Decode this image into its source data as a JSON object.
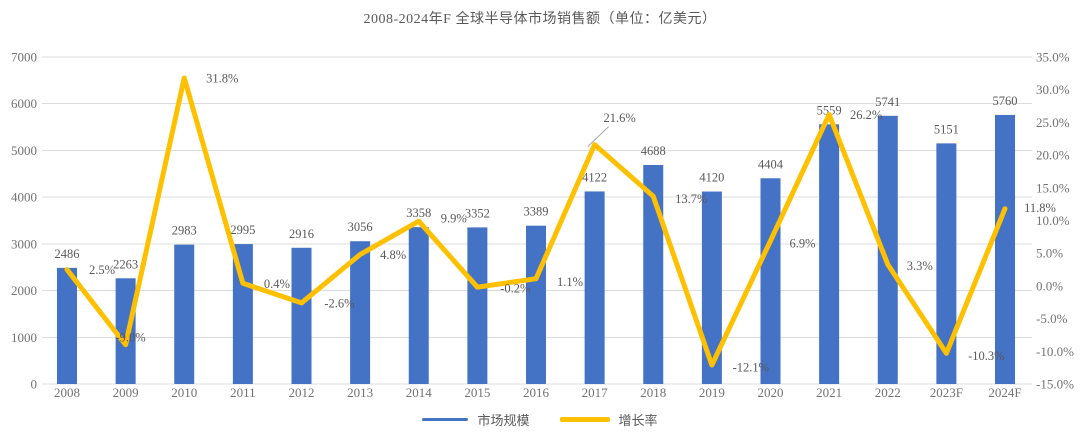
{
  "chart_data": {
    "type": "combo-bar-line",
    "title": "2008-2024年F 全球半导体市场销售额（单位：亿美元）",
    "categories": [
      "2008",
      "2009",
      "2010",
      "2011",
      "2012",
      "2013",
      "2014",
      "2015",
      "2016",
      "2017",
      "2018",
      "2019",
      "2020",
      "2021",
      "2022",
      "2023F",
      "2024F"
    ],
    "series": [
      {
        "name": "市场规模",
        "type": "bar",
        "axis": "left",
        "color": "#4472C4",
        "values": [
          2486,
          2263,
          2983,
          2995,
          2916,
          3056,
          3358,
          3352,
          3389,
          4122,
          4688,
          4120,
          4404,
          5559,
          5741,
          5151,
          5760
        ]
      },
      {
        "name": "增长率",
        "type": "line",
        "axis": "right",
        "color": "#FFC000",
        "values": [
          2.5,
          -9.0,
          31.8,
          0.4,
          -2.6,
          4.8,
          9.9,
          -0.2,
          1.1,
          21.6,
          13.7,
          -12.1,
          6.9,
          26.2,
          3.3,
          -10.3,
          11.8
        ],
        "label_format": "one-decimal-percent"
      }
    ],
    "left_axis": {
      "min": 0,
      "max": 7000,
      "step": 1000
    },
    "right_axis": {
      "min": -15,
      "max": 35,
      "step": 5,
      "tick_suffix": "%"
    },
    "legend": {
      "position": "bottom",
      "items": [
        "市场规模",
        "增长率"
      ]
    },
    "grid": true,
    "annotations": {
      "callout_category": "2017",
      "callout_label": "21.6%"
    },
    "colors": {
      "bar": "#4472C4",
      "line": "#FFC000",
      "grid": "#DDDDDD",
      "axis_text": "#737373",
      "data_label": "#595959",
      "title_text": "#595959",
      "leader_line": "#A6A6A6",
      "background": "#FFFFFF"
    }
  }
}
